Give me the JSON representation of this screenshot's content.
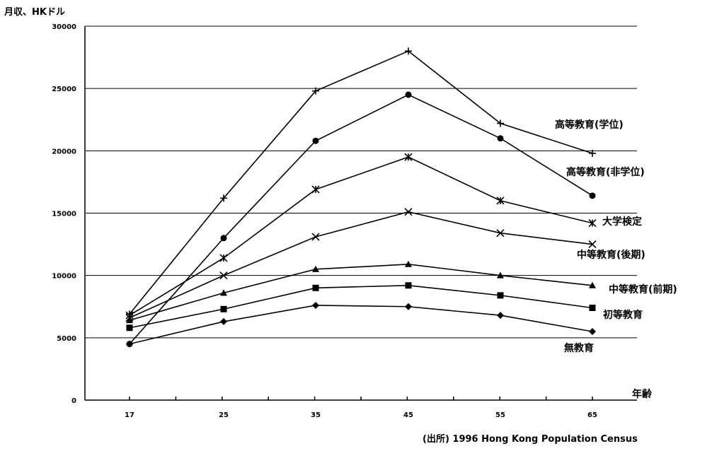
{
  "chart_data": {
    "type": "line",
    "ylabel": "月収、HKドル",
    "xlabel": "年齢",
    "source": "(出所) 1996 Hong Kong Population Census",
    "x": [
      17,
      25,
      35,
      45,
      55,
      65
    ],
    "y_ticks": [
      0,
      5000,
      10000,
      15000,
      20000,
      25000,
      30000
    ],
    "ylim": [
      0,
      30000
    ],
    "grid": "horizontal",
    "series": [
      {
        "name": "高等教育(学位)",
        "marker": "plus",
        "values": [
          6900,
          16200,
          24800,
          28000,
          22200,
          19800
        ]
      },
      {
        "name": "高等教育(非学位)",
        "marker": "circle",
        "values": [
          4500,
          13000,
          20800,
          24500,
          21000,
          16400
        ]
      },
      {
        "name": "大学検定",
        "marker": "asterisk",
        "values": [
          6800,
          11400,
          16900,
          19500,
          16000,
          14200
        ]
      },
      {
        "name": "中等教育(後期)",
        "marker": "x",
        "values": [
          6600,
          10000,
          13100,
          15100,
          13400,
          12500
        ]
      },
      {
        "name": "中等教育(前期)",
        "marker": "triangle",
        "values": [
          6400,
          8600,
          10500,
          10900,
          10000,
          9200
        ]
      },
      {
        "name": "初等教育",
        "marker": "square",
        "values": [
          5800,
          7300,
          9000,
          9200,
          8400,
          7400
        ]
      },
      {
        "name": "無教育",
        "marker": "diamond",
        "values": [
          4500,
          6300,
          7600,
          7500,
          6800,
          5500
        ]
      }
    ]
  }
}
